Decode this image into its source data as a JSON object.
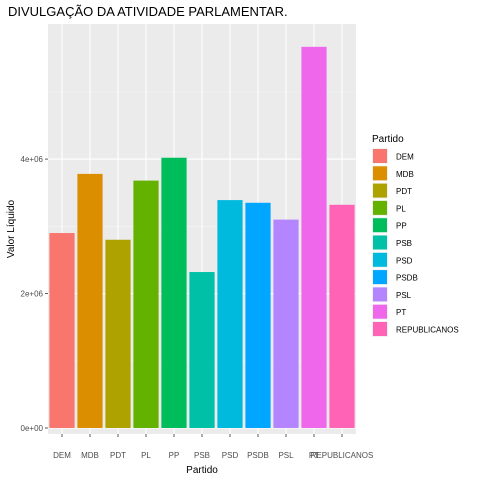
{
  "chart_data": {
    "type": "bar",
    "title": "DIVULGAÇÃO DA ATIVIDADE PARLAMENTAR.",
    "xlabel": "Partido",
    "ylabel": "Valor Líquido",
    "categories": [
      "DEM",
      "MDB",
      "PDT",
      "PL",
      "PP",
      "PSB",
      "PSD",
      "PSDB",
      "PSL",
      "PT",
      "REPUBLICANOS"
    ],
    "values": [
      2900000,
      3780000,
      2800000,
      3680000,
      4020000,
      2320000,
      3390000,
      3350000,
      3100000,
      5670000,
      3320000
    ],
    "colors": [
      "#F8766D",
      "#DB8E00",
      "#AEA200",
      "#64B200",
      "#00BD5C",
      "#00C1A7",
      "#00BADE",
      "#00A6FF",
      "#B385FF",
      "#EF67EB",
      "#FF63B6"
    ],
    "yticks": [
      0,
      2000000,
      4000000
    ],
    "ytick_labels": [
      "0e+00",
      "2e+06",
      "4e+06"
    ],
    "ylim": [
      0,
      5950000
    ],
    "grid": true,
    "legend": {
      "title": "Partido",
      "position": "right"
    }
  }
}
